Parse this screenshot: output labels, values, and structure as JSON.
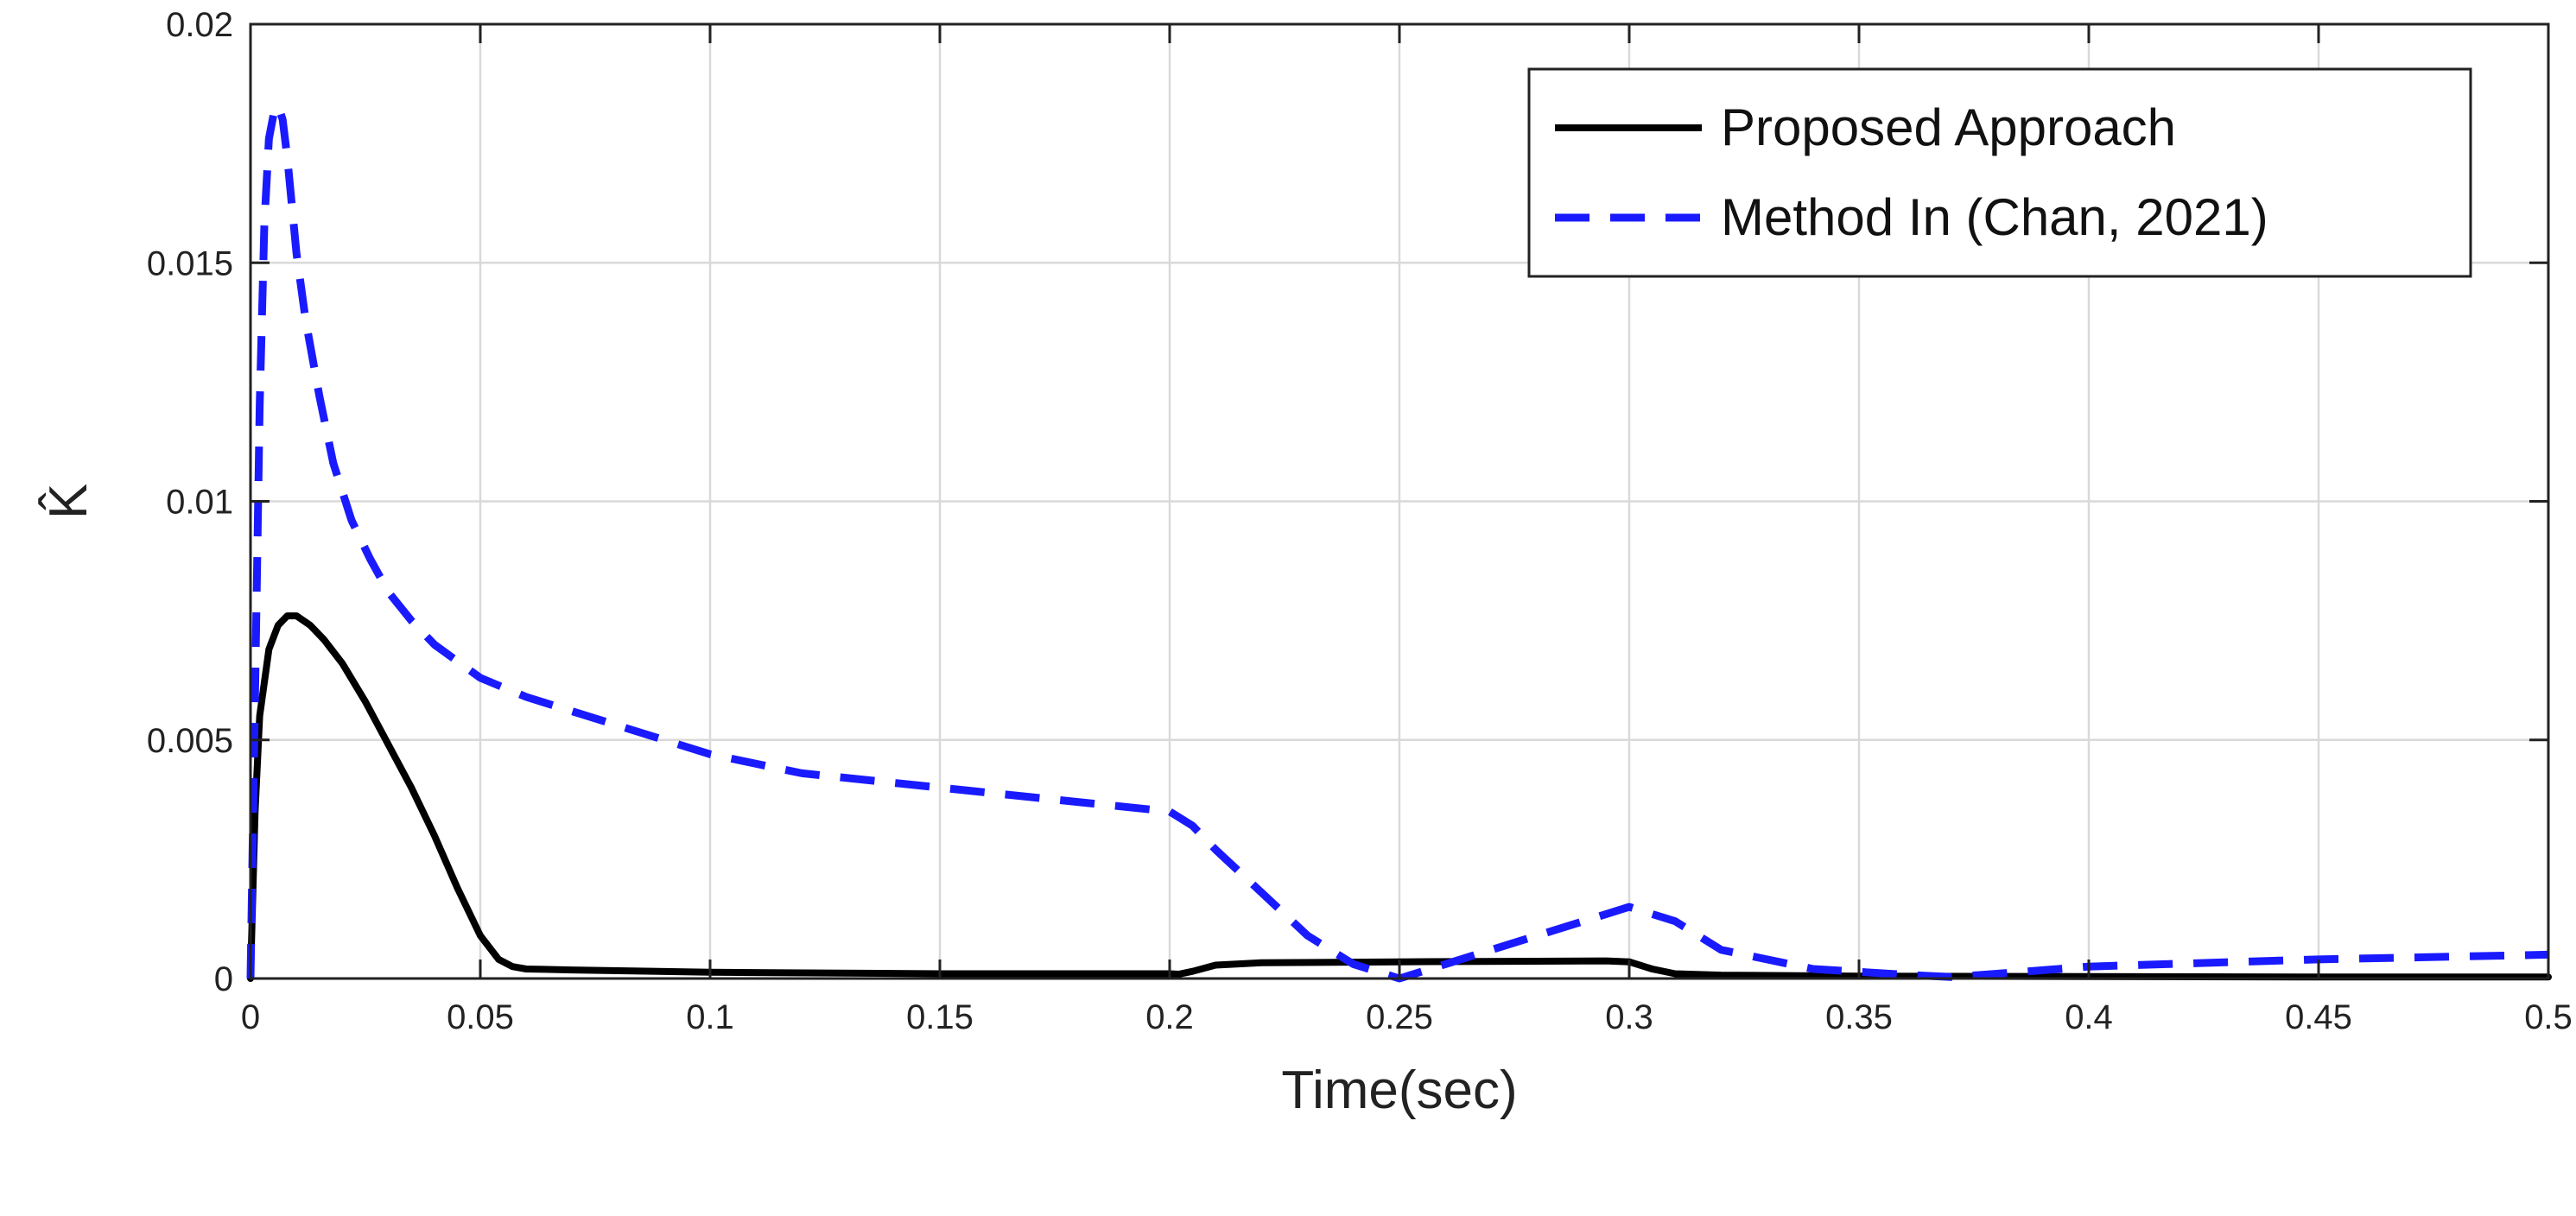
{
  "chart_data": {
    "type": "line",
    "title": "",
    "xlabel": "Time(sec)",
    "ylabel": "K̂",
    "xlim": [
      0,
      0.5
    ],
    "ylim": [
      0,
      0.02
    ],
    "x_ticks": [
      "0",
      "0.05",
      "0.1",
      "0.15",
      "0.2",
      "0.25",
      "0.3",
      "0.35",
      "0.4",
      "0.45",
      "0.5"
    ],
    "y_ticks": [
      "0",
      "0.005",
      "0.01",
      "0.015",
      "0.02"
    ],
    "grid": true,
    "legend_position": "top-right",
    "series": [
      {
        "name": "Proposed Approach",
        "color": "#000000",
        "style": "solid",
        "x": [
          0,
          0.001,
          0.002,
          0.004,
          0.006,
          0.008,
          0.01,
          0.013,
          0.016,
          0.02,
          0.025,
          0.03,
          0.035,
          0.04,
          0.045,
          0.05,
          0.054,
          0.057,
          0.06,
          0.07,
          0.1,
          0.15,
          0.2,
          0.202,
          0.205,
          0.21,
          0.22,
          0.25,
          0.295,
          0.3,
          0.305,
          0.31,
          0.32,
          0.35,
          0.4,
          0.45,
          0.5
        ],
        "y": [
          0,
          0.0035,
          0.0055,
          0.0069,
          0.0074,
          0.0076,
          0.0076,
          0.0074,
          0.0071,
          0.0066,
          0.0058,
          0.0049,
          0.004,
          0.003,
          0.0019,
          0.0009,
          0.0004,
          0.00025,
          0.0002,
          0.00018,
          0.00013,
          0.0001,
          0.0001,
          9e-05,
          0.00015,
          0.00028,
          0.00033,
          0.00035,
          0.00037,
          0.00035,
          0.0002,
          0.0001,
          7e-05,
          5e-05,
          4e-05,
          3e-05,
          3e-05
        ]
      },
      {
        "name": "Method In (Chan, 2021)",
        "color": "#1a1aff",
        "style": "dashed",
        "x": [
          0,
          0.001,
          0.002,
          0.003,
          0.004,
          0.005,
          0.006,
          0.007,
          0.008,
          0.009,
          0.01,
          0.012,
          0.015,
          0.018,
          0.022,
          0.026,
          0.03,
          0.035,
          0.04,
          0.05,
          0.06,
          0.08,
          0.1,
          0.12,
          0.15,
          0.18,
          0.2,
          0.205,
          0.21,
          0.22,
          0.23,
          0.24,
          0.25,
          0.26,
          0.28,
          0.3,
          0.31,
          0.32,
          0.34,
          0.36,
          0.37,
          0.38,
          0.4,
          0.45,
          0.5
        ],
        "y": [
          0,
          0.006,
          0.012,
          0.0158,
          0.0176,
          0.0181,
          0.0183,
          0.018,
          0.0172,
          0.0162,
          0.0152,
          0.0138,
          0.0122,
          0.0108,
          0.0096,
          0.0088,
          0.0081,
          0.0075,
          0.007,
          0.0063,
          0.0059,
          0.0053,
          0.0047,
          0.0043,
          0.004,
          0.0037,
          0.0035,
          0.0032,
          0.0027,
          0.0018,
          0.0009,
          0.0003,
          0,
          0.0003,
          0.0009,
          0.0015,
          0.0012,
          0.0006,
          0.0002,
          8e-05,
          3e-05,
          0.0001,
          0.00025,
          0.0004,
          0.0005
        ]
      }
    ]
  },
  "colors": {
    "background": "#ffffff",
    "grid": "#d9d9d9",
    "axes": "#222222"
  }
}
